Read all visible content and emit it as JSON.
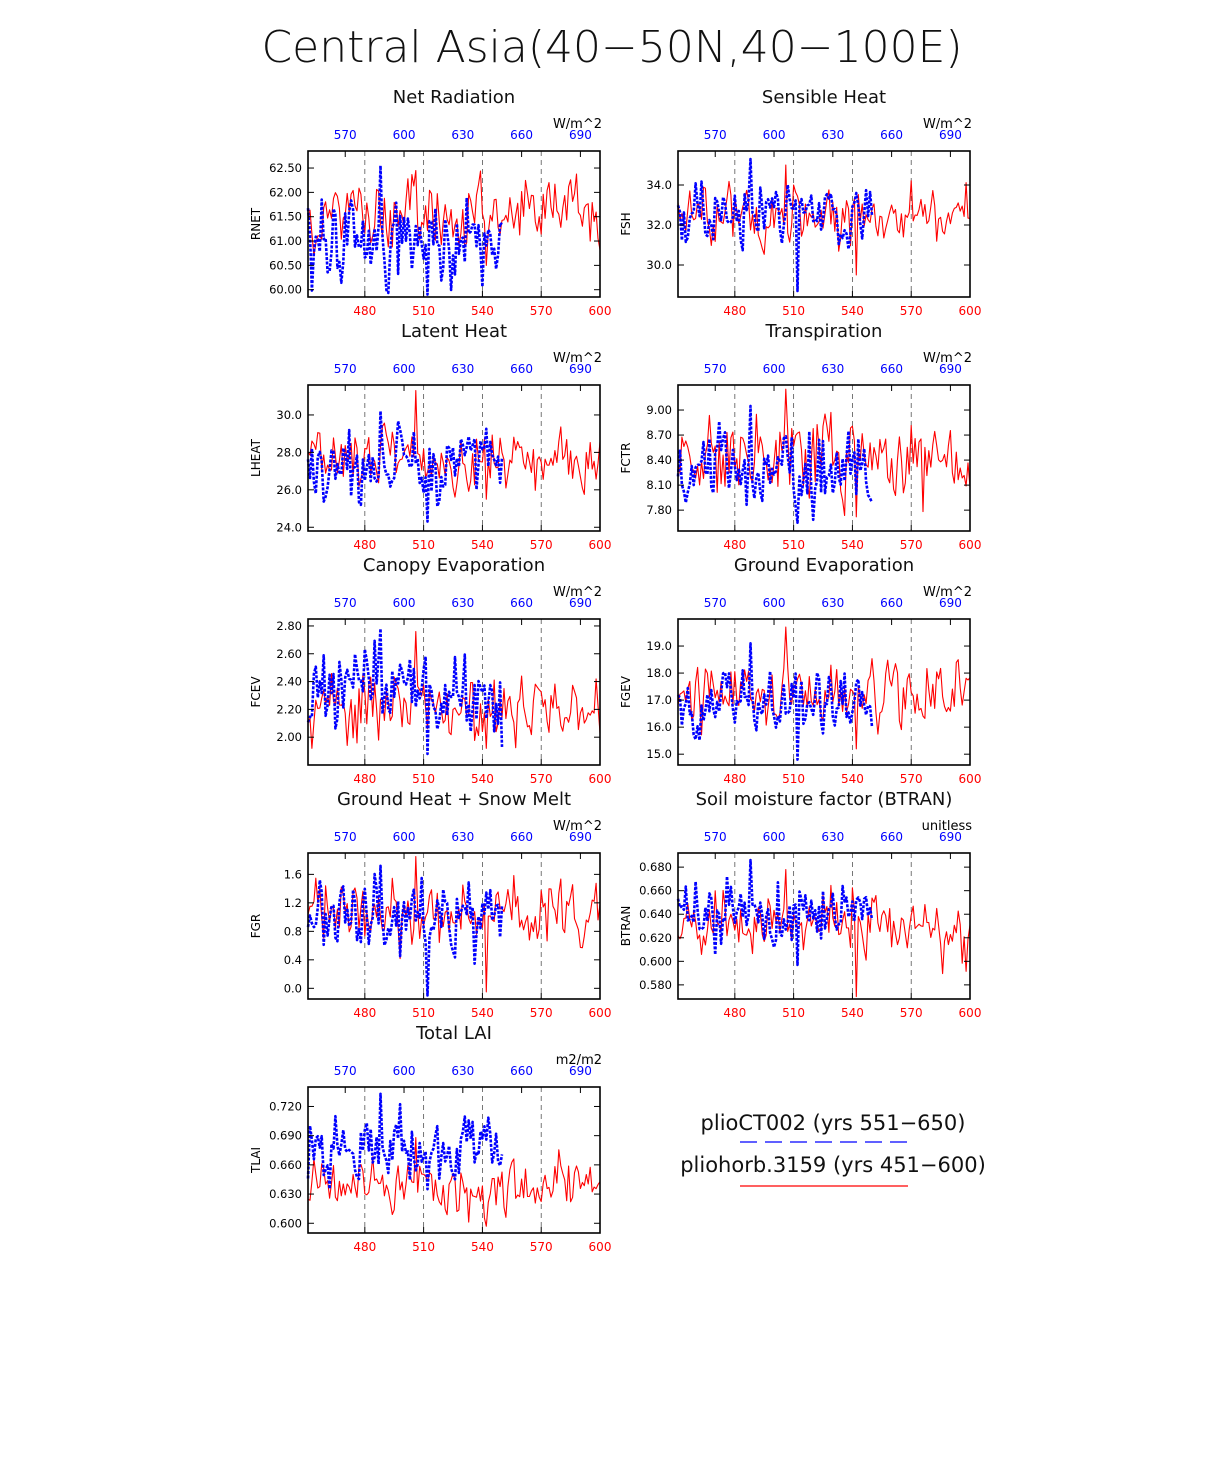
{
  "title": "Central Asia(40−50N,40−100E)",
  "colors": {
    "blue": "#0000ff",
    "red": "#ff0000",
    "axis": "#000000",
    "grid": "#555555"
  },
  "chart_data": [
    {
      "type": "line",
      "title": "Net Radiation",
      "ylabel": "RNET",
      "units": "W/m^2",
      "yticks": [
        "62.50",
        "62.00",
        "61.50",
        "61.00",
        "60.50",
        "60.00"
      ],
      "ylim": [
        59.85,
        62.85
      ],
      "x_bottom_ticks": [
        "480",
        "510",
        "540",
        "570",
        "600"
      ],
      "x_top_ticks": [
        "570",
        "600",
        "630",
        "660",
        "690"
      ],
      "bottom_range": [
        451,
        600
      ],
      "top_range": [
        551,
        700
      ],
      "series": [
        {
          "name": "plioCT002 (yrs 551−650)",
          "axis": "top",
          "x_start": 551,
          "x_end": 650,
          "mean": 61.05,
          "amp": 0.55,
          "min": 59.9,
          "max": 62.55,
          "seed": 11
        },
        {
          "name": "pliohorb.3159 (yrs 451−600)",
          "axis": "bottom",
          "x_start": 451,
          "x_end": 600,
          "mean": 61.55,
          "amp": 0.42,
          "min": 60.5,
          "max": 62.45,
          "seed": 12
        }
      ]
    },
    {
      "type": "line",
      "title": "Sensible Heat",
      "ylabel": "FSH",
      "units": "W/m^2",
      "yticks": [
        "34.0",
        "32.0",
        "30.0"
      ],
      "ylim": [
        28.4,
        35.7
      ],
      "x_bottom_ticks": [
        "480",
        "510",
        "540",
        "570",
        "600"
      ],
      "x_top_ticks": [
        "570",
        "600",
        "630",
        "660",
        "690"
      ],
      "bottom_range": [
        451,
        600
      ],
      "top_range": [
        551,
        700
      ],
      "series": [
        {
          "name": "plioCT002 (yrs 551−650)",
          "axis": "top",
          "x_start": 551,
          "x_end": 650,
          "mean": 32.6,
          "amp": 0.95,
          "min": 28.7,
          "max": 35.3,
          "seed": 21
        },
        {
          "name": "pliohorb.3159 (yrs 451−600)",
          "axis": "bottom",
          "x_start": 451,
          "x_end": 600,
          "mean": 32.6,
          "amp": 0.9,
          "min": 29.5,
          "max": 35.0,
          "seed": 22
        }
      ]
    },
    {
      "type": "line",
      "title": "Latent Heat",
      "ylabel": "LHEAT",
      "units": "W/m^2",
      "yticks": [
        "30.0",
        "28.0",
        "26.0",
        "24.0"
      ],
      "ylim": [
        23.8,
        31.6
      ],
      "x_bottom_ticks": [
        "480",
        "510",
        "540",
        "570",
        "600"
      ],
      "x_top_ticks": [
        "570",
        "600",
        "630",
        "660",
        "690"
      ],
      "bottom_range": [
        451,
        600
      ],
      "top_range": [
        551,
        700
      ],
      "series": [
        {
          "name": "plioCT002 (yrs 551−650)",
          "axis": "top",
          "x_start": 551,
          "x_end": 650,
          "mean": 27.2,
          "amp": 1.1,
          "min": 24.3,
          "max": 30.2,
          "seed": 31
        },
        {
          "name": "pliohorb.3159 (yrs 451−600)",
          "axis": "bottom",
          "x_start": 451,
          "x_end": 600,
          "mean": 27.8,
          "amp": 1.0,
          "min": 25.5,
          "max": 31.3,
          "seed": 32
        }
      ]
    },
    {
      "type": "line",
      "title": "Transpiration",
      "ylabel": "FCTR",
      "units": "W/m^2",
      "yticks": [
        "9.00",
        "8.70",
        "8.40",
        "8.10",
        "7.80"
      ],
      "ylim": [
        7.55,
        9.3
      ],
      "x_bottom_ticks": [
        "480",
        "510",
        "540",
        "570",
        "600"
      ],
      "x_top_ticks": [
        "570",
        "600",
        "630",
        "660",
        "690"
      ],
      "bottom_range": [
        451,
        600
      ],
      "top_range": [
        551,
        700
      ],
      "series": [
        {
          "name": "plioCT002 (yrs 551−650)",
          "axis": "top",
          "x_start": 551,
          "x_end": 650,
          "mean": 8.3,
          "amp": 0.28,
          "min": 7.65,
          "max": 9.05,
          "seed": 41
        },
        {
          "name": "pliohorb.3159 (yrs 451−600)",
          "axis": "bottom",
          "x_start": 451,
          "x_end": 600,
          "mean": 8.4,
          "amp": 0.3,
          "min": 7.72,
          "max": 9.25,
          "seed": 42
        }
      ]
    },
    {
      "type": "line",
      "title": "Canopy Evaporation",
      "ylabel": "FCEV",
      "units": "W/m^2",
      "yticks": [
        "2.80",
        "2.60",
        "2.40",
        "2.20",
        "2.00"
      ],
      "ylim": [
        1.8,
        2.85
      ],
      "x_bottom_ticks": [
        "480",
        "510",
        "540",
        "570",
        "600"
      ],
      "x_top_ticks": [
        "570",
        "600",
        "630",
        "660",
        "690"
      ],
      "bottom_range": [
        451,
        600
      ],
      "top_range": [
        551,
        700
      ],
      "series": [
        {
          "name": "plioCT002 (yrs 551−650)",
          "axis": "top",
          "x_start": 551,
          "x_end": 650,
          "mean": 2.3,
          "amp": 0.18,
          "min": 1.88,
          "max": 2.78,
          "seed": 51
        },
        {
          "name": "pliohorb.3159 (yrs 451−600)",
          "axis": "bottom",
          "x_start": 451,
          "x_end": 600,
          "mean": 2.2,
          "amp": 0.16,
          "min": 1.92,
          "max": 2.76,
          "seed": 52
        }
      ]
    },
    {
      "type": "line",
      "title": "Ground Evaporation",
      "ylabel": "FGEV",
      "units": "W/m^2",
      "yticks": [
        "19.0",
        "18.0",
        "17.0",
        "16.0",
        "15.0"
      ],
      "ylim": [
        14.6,
        20.0
      ],
      "x_bottom_ticks": [
        "480",
        "510",
        "540",
        "570",
        "600"
      ],
      "x_top_ticks": [
        "570",
        "600",
        "630",
        "660",
        "690"
      ],
      "bottom_range": [
        451,
        600
      ],
      "top_range": [
        551,
        700
      ],
      "series": [
        {
          "name": "plioCT002 (yrs 551−650)",
          "axis": "top",
          "x_start": 551,
          "x_end": 650,
          "mean": 16.8,
          "amp": 0.75,
          "min": 14.8,
          "max": 19.1,
          "seed": 61
        },
        {
          "name": "pliohorb.3159 (yrs 451−600)",
          "axis": "bottom",
          "x_start": 451,
          "x_end": 600,
          "mean": 17.2,
          "amp": 0.7,
          "min": 15.2,
          "max": 19.7,
          "seed": 62
        }
      ]
    },
    {
      "type": "line",
      "title": "Ground Heat + Snow Melt",
      "ylabel": "FGR",
      "units": "W/m^2",
      "yticks": [
        "1.6",
        "1.2",
        "0.8",
        "0.4",
        "0.0"
      ],
      "ylim": [
        -0.15,
        1.9
      ],
      "x_bottom_ticks": [
        "480",
        "510",
        "540",
        "570",
        "600"
      ],
      "x_top_ticks": [
        "570",
        "600",
        "630",
        "660",
        "690"
      ],
      "bottom_range": [
        451,
        600
      ],
      "top_range": [
        551,
        700
      ],
      "series": [
        {
          "name": "plioCT002 (yrs 551−650)",
          "axis": "top",
          "x_start": 551,
          "x_end": 650,
          "mean": 1.0,
          "amp": 0.35,
          "min": -0.1,
          "max": 1.72,
          "seed": 71
        },
        {
          "name": "pliohorb.3159 (yrs 451−600)",
          "axis": "bottom",
          "x_start": 451,
          "x_end": 600,
          "mean": 1.05,
          "amp": 0.28,
          "min": -0.05,
          "max": 1.85,
          "seed": 72
        }
      ]
    },
    {
      "type": "line",
      "title": "Soil moisture factor (BTRAN)",
      "ylabel": "BTRAN",
      "units": "unitless",
      "yticks": [
        "0.680",
        "0.660",
        "0.640",
        "0.620",
        "0.600",
        "0.580"
      ],
      "ylim": [
        0.568,
        0.692
      ],
      "x_bottom_ticks": [
        "480",
        "510",
        "540",
        "570",
        "600"
      ],
      "x_top_ticks": [
        "570",
        "600",
        "630",
        "660",
        "690"
      ],
      "bottom_range": [
        451,
        600
      ],
      "top_range": [
        551,
        700
      ],
      "series": [
        {
          "name": "plioCT002 (yrs 551−650)",
          "axis": "top",
          "x_start": 551,
          "x_end": 650,
          "mean": 0.642,
          "amp": 0.017,
          "min": 0.597,
          "max": 0.686,
          "seed": 81
        },
        {
          "name": "pliohorb.3159 (yrs 451−600)",
          "axis": "bottom",
          "x_start": 451,
          "x_end": 600,
          "mean": 0.632,
          "amp": 0.017,
          "min": 0.57,
          "max": 0.678,
          "seed": 82
        }
      ]
    },
    {
      "type": "line",
      "title": "Total LAI",
      "ylabel": "TLAI",
      "units": "m2/m2",
      "yticks": [
        "0.720",
        "0.690",
        "0.660",
        "0.630",
        "0.600"
      ],
      "ylim": [
        0.59,
        0.74
      ],
      "x_bottom_ticks": [
        "480",
        "510",
        "540",
        "570",
        "600"
      ],
      "x_top_ticks": [
        "570",
        "600",
        "630",
        "660",
        "690"
      ],
      "bottom_range": [
        451,
        600
      ],
      "top_range": [
        551,
        700
      ],
      "series": [
        {
          "name": "plioCT002 (yrs 551−650)",
          "axis": "top",
          "x_start": 551,
          "x_end": 650,
          "mean": 0.675,
          "amp": 0.022,
          "min": 0.635,
          "max": 0.733,
          "seed": 91
        },
        {
          "name": "pliohorb.3159 (yrs 451−600)",
          "axis": "bottom",
          "x_start": 451,
          "x_end": 600,
          "mean": 0.638,
          "amp": 0.017,
          "min": 0.597,
          "max": 0.688,
          "seed": 92
        }
      ]
    }
  ],
  "legend": [
    {
      "label": "plioCT002 (yrs 551−650)",
      "style": "dashed",
      "color": "#0000ff"
    },
    {
      "label": "pliohorb.3159 (yrs 451−600)",
      "style": "solid",
      "color": "#ff0000"
    }
  ]
}
